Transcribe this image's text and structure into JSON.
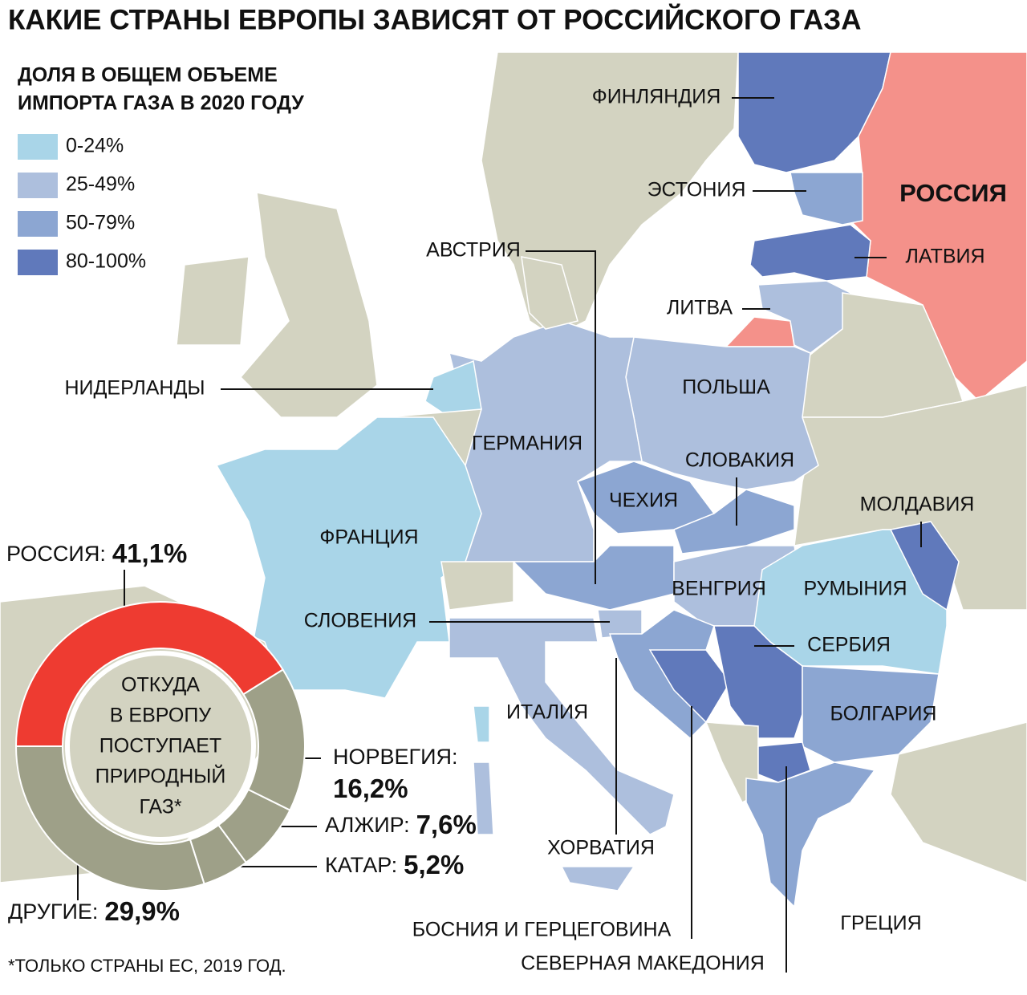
{
  "title": "КАКИЕ СТРАНЫ ЕВРОПЫ ЗАВИСЯТ ОТ РОССИЙСКОГО ГАЗА",
  "legend": {
    "title": [
      "ДОЛЯ В ОБЩЕМ ОБЪЕМЕ",
      "ИМПОРТА ГАЗА В 2020 ГОДУ"
    ],
    "items": [
      {
        "label": "0-24%",
        "color": "#a9d5e8"
      },
      {
        "label": "25-49%",
        "color": "#adbfdd"
      },
      {
        "label": "50-79%",
        "color": "#8ca6d2"
      },
      {
        "label": "80-100%",
        "color": "#6079bb"
      }
    ]
  },
  "map_labels": [
    "ФИНЛЯНДИЯ",
    "ЭСТОНИЯ",
    "РОССИЯ",
    "ЛАТВИЯ",
    "АВСТРИЯ",
    "ЛИТВА",
    "НИДЕРЛАНДЫ",
    "ПОЛЬША",
    "ГЕРМАНИЯ",
    "СЛОВАКИЯ",
    "ЧЕХИЯ",
    "МОЛДАВИЯ",
    "ФРАНЦИЯ",
    "ВЕНГРИЯ",
    "РУМЫНИЯ",
    "СЛОВЕНИЯ",
    "СЕРБИЯ",
    "ИТАЛИЯ",
    "БОЛГАРИЯ",
    "ХОРВАТИЯ",
    "ГРЕЦИЯ",
    "БОСНИЯ И ГЕРЦЕГОВИНА",
    "СЕВЕРНАЯ МАКЕДОНИЯ"
  ],
  "chart_data": {
    "type": "pie",
    "center_text": [
      "ОТКУДА",
      "В ЕВРОПУ",
      "ПОСТУПАЕТ",
      "ПРИРОДНЫЙ",
      "ГАЗ*"
    ],
    "categories": [
      "РОССИЯ:",
      "НОРВЕГИЯ:",
      "АЛЖИР:",
      "КАТАР:",
      "ДРУГИЕ:"
    ],
    "values": [
      41.1,
      16.2,
      7.6,
      5.2,
      29.9
    ],
    "value_labels": [
      "41,1%",
      "16,2%",
      "7,6%",
      "5,2%",
      "29,9%"
    ],
    "colors": [
      "#ee3b31",
      "#9ea088",
      "#9ea088",
      "#9ea088",
      "#9ea088"
    ]
  },
  "footnote": "*ТОЛЬКО СТРАНЫ ЕС, 2019 ГОД."
}
